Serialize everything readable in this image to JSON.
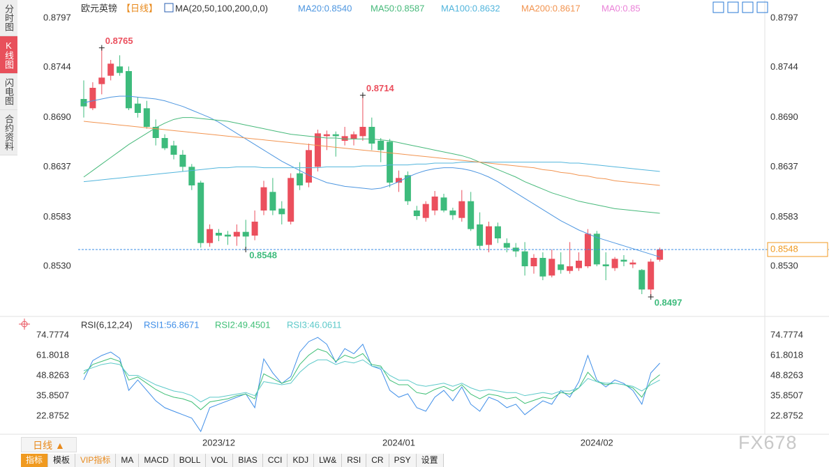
{
  "sidebar": [
    "分时图",
    "K线图",
    "闪电图",
    "合约资料"
  ],
  "period_button": "日线 ▲",
  "toolbar": [
    "指标",
    "模板",
    "VIP指标",
    "MA",
    "MACD",
    "BOLL",
    "VOL",
    "BIAS",
    "CCI",
    "KDJ",
    "LW&",
    "RSI",
    "CR",
    "PSY",
    "设置"
  ],
  "watermark": "FX678",
  "chart_data": [
    {
      "type": "candlestick",
      "title": "欧元英镑",
      "subtitle": "【日线】",
      "indicator": "MA(20,50,100,200,0,0)",
      "categories": [
        null,
        null,
        null,
        null,
        null,
        null,
        null,
        null,
        null,
        null,
        null,
        null,
        null,
        null,
        null,
        "2023/12",
        null,
        null,
        null,
        null,
        null,
        null,
        null,
        null,
        null,
        null,
        null,
        null,
        null,
        null,
        null,
        null,
        null,
        null,
        null,
        "2024/01",
        null,
        null,
        null,
        null,
        null,
        null,
        null,
        null,
        null,
        null,
        null,
        null,
        null,
        null,
        null,
        null,
        null,
        null,
        null,
        null,
        null,
        "2024/02",
        null,
        null,
        null,
        null,
        null,
        null,
        null
      ],
      "open": [
        0.871,
        0.87,
        0.8726,
        0.8735,
        0.8745,
        0.874,
        0.8705,
        0.87,
        0.868,
        0.8668,
        0.866,
        0.865,
        0.8637,
        0.862,
        0.8555,
        0.8566,
        0.8564,
        0.8562,
        0.8567,
        0.8563,
        0.859,
        0.861,
        0.8592,
        0.8578,
        0.863,
        0.862,
        0.8637,
        0.867,
        0.8672,
        0.8665,
        0.8667,
        0.867,
        0.868,
        0.8665,
        0.8664,
        0.862,
        0.8628,
        0.859,
        0.8582,
        0.859,
        0.8604,
        0.859,
        0.8582,
        0.86,
        0.8575,
        0.8553,
        0.8573,
        0.8555,
        0.855,
        0.8546,
        0.853,
        0.8539,
        0.852,
        0.8532,
        0.8525,
        0.8528,
        0.853,
        0.8565,
        0.8532,
        0.8528,
        0.8537,
        0.8532,
        0.8526,
        0.8505,
        0.8537
      ],
      "high": [
        0.873,
        0.8728,
        0.8765,
        0.8752,
        0.8757,
        0.8745,
        0.8712,
        0.8708,
        0.8688,
        0.8672,
        0.8665,
        0.8655,
        0.864,
        0.8622,
        0.8575,
        0.857,
        0.8568,
        0.8575,
        0.858,
        0.859,
        0.8622,
        0.8625,
        0.86,
        0.863,
        0.8642,
        0.8662,
        0.8677,
        0.8676,
        0.8675,
        0.868,
        0.8675,
        0.8714,
        0.869,
        0.8668,
        0.8667,
        0.8633,
        0.8632,
        0.8595,
        0.86,
        0.8611,
        0.8608,
        0.8593,
        0.8612,
        0.861,
        0.8588,
        0.8578,
        0.8577,
        0.856,
        0.8555,
        0.8556,
        0.8543,
        0.8545,
        0.8548,
        0.8545,
        0.8556,
        0.8545,
        0.857,
        0.8568,
        0.8545,
        0.854,
        0.8542,
        0.8537,
        0.8527,
        0.8538,
        0.855
      ],
      "low": [
        0.869,
        0.8698,
        0.8715,
        0.873,
        0.8735,
        0.8698,
        0.869,
        0.8678,
        0.866,
        0.8655,
        0.8645,
        0.8632,
        0.8612,
        0.855,
        0.8551,
        0.8557,
        0.8553,
        0.8552,
        0.8548,
        0.8558,
        0.8585,
        0.8585,
        0.8575,
        0.8575,
        0.8612,
        0.8615,
        0.8632,
        0.8655,
        0.8648,
        0.866,
        0.866,
        0.8665,
        0.8655,
        0.8642,
        0.8615,
        0.861,
        0.8596,
        0.858,
        0.8578,
        0.8585,
        0.8588,
        0.858,
        0.8578,
        0.8568,
        0.8548,
        0.8545,
        0.8555,
        0.8545,
        0.854,
        0.852,
        0.8522,
        0.8515,
        0.8518,
        0.8522,
        0.8522,
        0.8525,
        0.8528,
        0.853,
        0.8515,
        0.8525,
        0.853,
        0.8528,
        0.85,
        0.8497,
        0.8535
      ],
      "close": [
        0.8702,
        0.8722,
        0.8733,
        0.8748,
        0.8738,
        0.87,
        0.8695,
        0.868,
        0.8668,
        0.8657,
        0.865,
        0.8637,
        0.8617,
        0.8555,
        0.857,
        0.8563,
        0.8562,
        0.8567,
        0.8562,
        0.8578,
        0.8615,
        0.859,
        0.8586,
        0.8625,
        0.8617,
        0.8655,
        0.8673,
        0.8672,
        0.867,
        0.867,
        0.8672,
        0.868,
        0.8662,
        0.8655,
        0.862,
        0.8625,
        0.86,
        0.8584,
        0.8597,
        0.8605,
        0.859,
        0.8585,
        0.86,
        0.857,
        0.8552,
        0.8573,
        0.856,
        0.855,
        0.8546,
        0.853,
        0.8539,
        0.8519,
        0.8538,
        0.8526,
        0.853,
        0.8536,
        0.8565,
        0.8532,
        0.853,
        0.8538,
        0.8535,
        0.8534,
        0.8505,
        0.8535,
        0.8548
      ],
      "up_color": "#eb4f5d",
      "down_color": "#3dbb7c",
      "last_color": "#3a8ee6",
      "ylim": [
        0.84775,
        0.8809
      ],
      "yticks": [
        0.8797,
        0.8744,
        {
          "value": 0.869,
          "label": "0.8690"
        },
        0.8637,
        0.8583,
        {
          "value": 0.853,
          "label": "0.8530"
        }
      ],
      "series": [
        {
          "name": "MA20:0.8540",
          "color": "#4d96e0",
          "values": [
            0.8706,
            0.8708,
            0.871,
            0.8712,
            0.8713,
            0.8713,
            0.8712,
            0.8711,
            0.871,
            0.8708,
            0.8705,
            0.8702,
            0.8698,
            0.8694,
            0.869,
            0.8685,
            0.8679,
            0.8673,
            0.8667,
            0.8661,
            0.8655,
            0.8649,
            0.8643,
            0.8638,
            0.8633,
            0.8628,
            0.8624,
            0.862,
            0.8618,
            0.8616,
            0.8615,
            0.8614,
            0.8613,
            0.8614,
            0.8617,
            0.8621,
            0.8626,
            0.863,
            0.8633,
            0.8635,
            0.8636,
            0.8636,
            0.8635,
            0.8633,
            0.863,
            0.8626,
            0.8621,
            0.8615,
            0.8609,
            0.8603,
            0.8597,
            0.8591,
            0.8585,
            0.8579,
            0.8574,
            0.8569,
            0.8565,
            0.8561,
            0.8558,
            0.8555,
            0.8552,
            0.8549,
            0.8546,
            0.8543,
            0.854
          ]
        },
        {
          "name": "MA50:0.8587",
          "color": "#46b97a",
          "values": [
            0.8626,
            0.8633,
            0.864,
            0.8647,
            0.8654,
            0.8661,
            0.8667,
            0.8673,
            0.8679,
            0.8684,
            0.8688,
            0.869,
            0.869,
            0.8689,
            0.8688,
            0.8687,
            0.8686,
            0.8684,
            0.8682,
            0.868,
            0.8678,
            0.8676,
            0.8674,
            0.8672,
            0.8671,
            0.867,
            0.8669,
            0.8668,
            0.8668,
            0.8667,
            0.8667,
            0.8667,
            0.8667,
            0.8666,
            0.8665,
            0.8663,
            0.8661,
            0.8659,
            0.8657,
            0.8655,
            0.8653,
            0.8651,
            0.8649,
            0.8646,
            0.8642,
            0.8638,
            0.8634,
            0.863,
            0.8626,
            0.8621,
            0.8617,
            0.8613,
            0.8609,
            0.8606,
            0.8603,
            0.86,
            0.8598,
            0.8596,
            0.8594,
            0.8592,
            0.8591,
            0.859,
            0.8589,
            0.8588,
            0.8587
          ]
        },
        {
          "name": "MA100:0.8632",
          "color": "#52b5dc",
          "values": [
            0.8621,
            0.8622,
            0.8623,
            0.8624,
            0.8625,
            0.8626,
            0.8627,
            0.8628,
            0.8629,
            0.863,
            0.8631,
            0.8632,
            0.8633,
            0.8634,
            0.8635,
            0.8636,
            0.8636,
            0.8637,
            0.8637,
            0.8637,
            0.8636,
            0.8636,
            0.8636,
            0.8636,
            0.8636,
            0.8636,
            0.8636,
            0.8637,
            0.8637,
            0.8637,
            0.8637,
            0.8638,
            0.8638,
            0.8638,
            0.8639,
            0.8639,
            0.8639,
            0.864,
            0.864,
            0.8641,
            0.8641,
            0.8641,
            0.8642,
            0.8642,
            0.8642,
            0.8642,
            0.8642,
            0.8642,
            0.8642,
            0.8642,
            0.8642,
            0.8642,
            0.8642,
            0.8642,
            0.8641,
            0.8641,
            0.864,
            0.8639,
            0.8638,
            0.8637,
            0.8636,
            0.8635,
            0.8634,
            0.8633,
            0.8632
          ]
        },
        {
          "name": "MA200:0.8617",
          "color": "#f29450",
          "values": [
            0.8686,
            0.8685,
            0.8684,
            0.8683,
            0.8682,
            0.8681,
            0.868,
            0.8679,
            0.8678,
            0.8677,
            0.8676,
            0.8675,
            0.8674,
            0.8673,
            0.8672,
            0.8671,
            0.867,
            0.8669,
            0.8668,
            0.8667,
            0.8666,
            0.8665,
            0.8664,
            0.8663,
            0.8662,
            0.8661,
            0.866,
            0.8659,
            0.8658,
            0.8657,
            0.8656,
            0.8655,
            0.8654,
            0.8653,
            0.8652,
            0.8651,
            0.865,
            0.8649,
            0.8648,
            0.8647,
            0.8646,
            0.8645,
            0.8644,
            0.8643,
            0.8642,
            0.8641,
            0.864,
            0.8639,
            0.8638,
            0.8637,
            0.8636,
            0.8634,
            0.8633,
            0.8631,
            0.863,
            0.8628,
            0.8627,
            0.8625,
            0.8624,
            0.8622,
            0.8621,
            0.862,
            0.8619,
            0.8618,
            0.8617
          ]
        }
      ],
      "extra_legend": {
        "name": "MA0:0.85",
        "color": "#ea82d8"
      }
    },
    {
      "type": "line",
      "title": "RSI(6,12,24)",
      "ylim": [
        11.69,
        84.17
      ],
      "yticks": [
        74.7774,
        61.8018,
        48.8263,
        35.8507,
        22.8752
      ],
      "series": [
        {
          "name": "RSI1:56.8671",
          "color": "#3f8ee8",
          "values": [
            46.1,
            58.5,
            61.8,
            64.0,
            60.0,
            39.4,
            46.1,
            39.4,
            32.7,
            28.3,
            26.0,
            23.8,
            21.6,
            13.0,
            28.3,
            30.5,
            32.7,
            35.0,
            37.2,
            28.3,
            59.6,
            50.6,
            43.8,
            48.3,
            64.0,
            70.7,
            73.4,
            69.0,
            57.3,
            66.2,
            62.9,
            69.0,
            55.0,
            53.0,
            39.4,
            35.0,
            37.2,
            28.3,
            26.0,
            35.0,
            39.4,
            32.7,
            41.6,
            30.5,
            26.0,
            35.0,
            32.7,
            28.3,
            30.5,
            23.8,
            28.3,
            32.7,
            30.5,
            39.4,
            35.0,
            44.9,
            61.8,
            46.1,
            41.6,
            46.1,
            43.8,
            39.4,
            30.5,
            50.6,
            56.8671
          ]
        },
        {
          "name": "RSI2:49.4501",
          "color": "#3fbf76",
          "values": [
            50,
            56,
            58,
            60,
            58,
            46,
            48,
            44,
            40,
            37,
            35,
            34,
            32,
            27,
            32,
            33,
            34,
            36,
            37,
            34,
            50,
            47,
            44,
            46,
            56,
            62,
            66,
            64,
            58,
            62,
            60,
            63,
            56,
            55,
            46,
            43,
            43,
            38,
            37,
            40,
            42,
            39,
            43,
            37,
            34,
            37,
            36,
            34,
            35,
            31,
            33,
            35,
            34,
            38,
            37,
            41,
            51,
            45,
            43,
            44,
            43,
            41,
            35,
            45,
            49.4501
          ]
        },
        {
          "name": "RSI3:46.0611",
          "color": "#5cc9c9",
          "values": [
            52,
            54,
            56,
            57,
            56,
            49,
            49,
            46,
            43,
            41,
            39,
            38,
            36,
            32,
            35,
            35,
            36,
            37,
            38,
            36,
            45,
            44,
            43,
            44,
            51,
            56,
            59,
            59,
            56,
            58,
            57,
            59,
            55,
            54,
            49,
            46,
            46,
            43,
            42,
            43,
            44,
            42,
            44,
            41,
            39,
            40,
            39,
            38,
            38,
            36,
            37,
            38,
            37,
            39,
            39,
            41,
            47,
            45,
            44,
            44,
            43,
            42,
            39,
            43,
            46.0611
          ]
        }
      ]
    }
  ]
}
